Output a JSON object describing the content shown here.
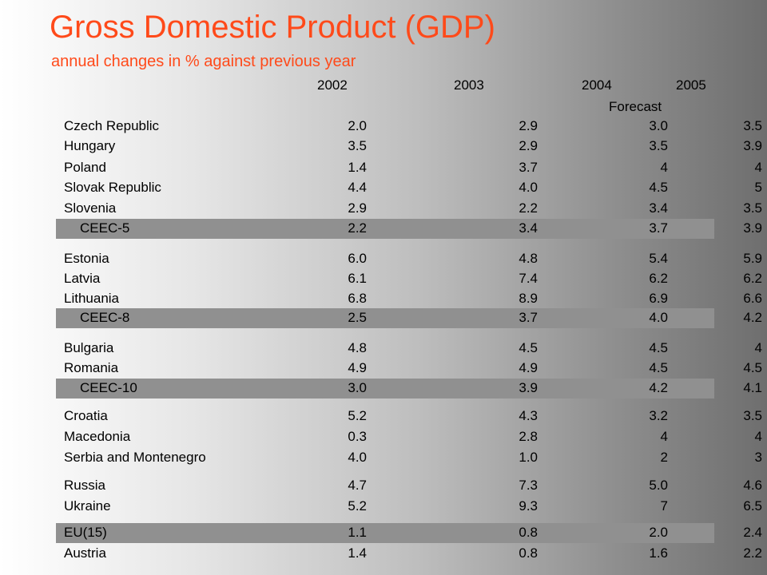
{
  "title": "Gross Domestic Product (GDP)",
  "subtitle": "annual changes in % against previous year",
  "columns": [
    "2002",
    "2003",
    "2004",
    "2005"
  ],
  "forecast_label": "Forecast",
  "rows": [
    {
      "label": "Czech Republic",
      "values": [
        "2.0",
        "2.9",
        "3.0",
        "3.5"
      ],
      "type": "country"
    },
    {
      "label": "Hungary",
      "values": [
        "3.5",
        "2.9",
        "3.5",
        "3.9"
      ],
      "type": "country"
    },
    {
      "label": "Poland",
      "values": [
        "1.4",
        "3.7",
        "4",
        "4"
      ],
      "type": "country"
    },
    {
      "label": "Slovak Republic",
      "values": [
        "4.4",
        "4.0",
        "4.5",
        "5"
      ],
      "type": "country"
    },
    {
      "label": "Slovenia",
      "values": [
        "2.9",
        "2.2",
        "3.4",
        "3.5"
      ],
      "type": "country"
    },
    {
      "label": "CEEC-5",
      "values": [
        "2.2",
        "3.4",
        "3.7",
        "3.9"
      ],
      "type": "aggregate"
    },
    {
      "label": "Estonia",
      "values": [
        "6.0",
        "4.8",
        "5.4",
        "5.9"
      ],
      "type": "country"
    },
    {
      "label": "Latvia",
      "values": [
        "6.1",
        "7.4",
        "6.2",
        "6.2"
      ],
      "type": "country"
    },
    {
      "label": "Lithuania",
      "values": [
        "6.8",
        "8.9",
        "6.9",
        "6.6"
      ],
      "type": "country"
    },
    {
      "label": "CEEC-8",
      "values": [
        "2.5",
        "3.7",
        "4.0",
        "4.2"
      ],
      "type": "aggregate"
    },
    {
      "label": "Bulgaria",
      "values": [
        "4.8",
        "4.5",
        "4.5",
        "4"
      ],
      "type": "country"
    },
    {
      "label": "Romania",
      "values": [
        "4.9",
        "4.9",
        "4.5",
        "4.5"
      ],
      "type": "country"
    },
    {
      "label": "CEEC-10",
      "values": [
        "3.0",
        "3.9",
        "4.2",
        "4.1"
      ],
      "type": "aggregate"
    },
    {
      "label": "Croatia",
      "values": [
        "5.2",
        "4.3",
        "3.2",
        "3.5"
      ],
      "type": "country"
    },
    {
      "label": "Macedonia",
      "values": [
        "0.3",
        "2.8",
        "4",
        "4"
      ],
      "type": "country"
    },
    {
      "label": "Serbia and Montenegro",
      "values": [
        "4.0",
        "1.0",
        "2",
        "3"
      ],
      "type": "country"
    },
    {
      "label": "Russia",
      "values": [
        "4.7",
        "7.3",
        "5.0",
        "4.6"
      ],
      "type": "country"
    },
    {
      "label": "Ukraine",
      "values": [
        "5.2",
        "9.3",
        "7",
        "6.5"
      ],
      "type": "country"
    },
    {
      "label": "EU(15)",
      "values": [
        "1.1",
        "0.8",
        "2.0",
        "2.4"
      ],
      "type": "eu"
    },
    {
      "label": "Austria",
      "values": [
        "1.4",
        "0.8",
        "1.6",
        "2.2"
      ],
      "type": "country"
    }
  ],
  "colors": {
    "title": "#ff4a1a",
    "aggregate_band": "#909090"
  }
}
